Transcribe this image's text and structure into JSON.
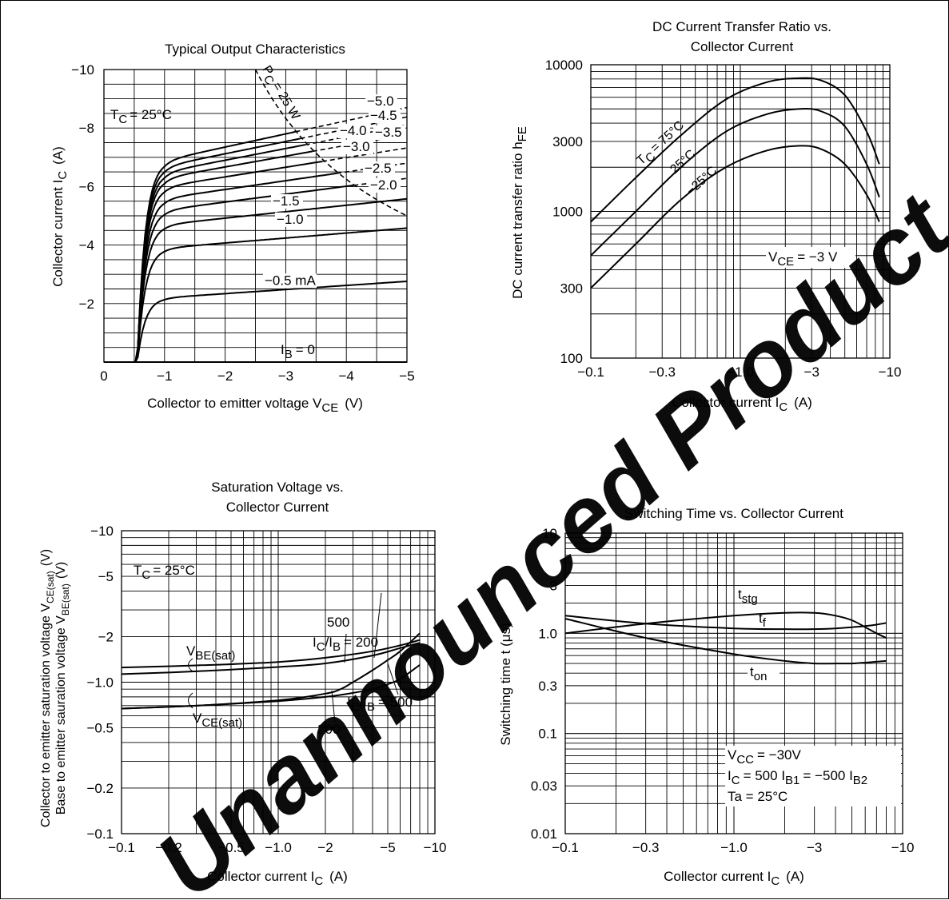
{
  "colors": {
    "ink": "#000000",
    "background": "#ffffff",
    "watermark": "#e60012"
  },
  "watermark": {
    "text": "Discontinued and Unannounced Product",
    "visible_text": "Unannounced Product"
  },
  "chart_data": [
    {
      "id": "output",
      "type": "line",
      "title": "Typical Output Characteristics",
      "xlabel": "Collector to emitter voltage  V",
      "xlabel_sub": "CE",
      "xlabel_unit": "(V)",
      "ylabel": "Collector current  I",
      "ylabel_sub": "C",
      "ylabel_unit": "(A)",
      "xlim": [
        0,
        -5
      ],
      "ylim": [
        0,
        -10
      ],
      "x_ticks": [
        "0",
        "−1",
        "−2",
        "−3",
        "−4",
        "−5"
      ],
      "y_ticks": [
        "",
        "−2",
        "−4",
        "−6",
        "−8",
        "−10"
      ],
      "condition": "T",
      "condition_sub": "C",
      "condition_val": "= 25°C",
      "power_label": "P",
      "power_sub": "C",
      "power_val": "= 25 W",
      "power_hyperbola_W": 25,
      "series": [
        {
          "name": "I_B = 0",
          "label": "0",
          "sat": 0.0,
          "slope": 0.0
        },
        {
          "name": "−0.5 mA",
          "label": "−0.5 mA",
          "sat": 2.2,
          "slope": 0.14
        },
        {
          "name": "−1.0",
          "label": "−1.0",
          "sat": 3.9,
          "slope": 0.17
        },
        {
          "name": "−1.5",
          "label": "−1.5",
          "sat": 4.7,
          "slope": 0.22
        },
        {
          "name": "−2.0",
          "label": "−2.0",
          "sat": 5.2,
          "slope": 0.27
        },
        {
          "name": "−2.5",
          "label": "−2.5",
          "sat": 5.6,
          "slope": 0.3
        },
        {
          "name": "−3.0",
          "label": "−3.0",
          "sat": 6.0,
          "slope": 0.33
        },
        {
          "name": "−3.5",
          "label": "−3.5",
          "sat": 6.3,
          "slope": 0.37
        },
        {
          "name": "−4.0",
          "label": "−4.0",
          "sat": 6.5,
          "slope": 0.4
        },
        {
          "name": "−4.5",
          "label": "−4.5",
          "sat": 6.7,
          "slope": 0.42
        },
        {
          "name": "−5.0",
          "label": "−5.0",
          "sat": 6.9,
          "slope": 0.45
        }
      ],
      "base_label": "I",
      "base_sub": "B",
      "base_val": "= 0"
    },
    {
      "id": "hfe",
      "type": "line",
      "title": "DC Current Transfer Ratio vs.",
      "title2": "Collector Current",
      "xlabel": "Collector current  I",
      "xlabel_sub": "C",
      "xlabel_unit": "(A)",
      "ylabel": "DC current transfer ratio  h",
      "ylabel_sub": "FE",
      "x_scale": "log",
      "y_scale": "log",
      "xlim": [
        -0.1,
        -10
      ],
      "ylim": [
        100,
        10000
      ],
      "x_ticks": [
        {
          "v": 0.1,
          "t": "−0.1"
        },
        {
          "v": 0.3,
          "t": "−0.3"
        },
        {
          "v": 1,
          "t": "−1.0"
        },
        {
          "v": 3,
          "t": "−3"
        },
        {
          "v": 10,
          "t": "−10"
        }
      ],
      "y_ticks": [
        {
          "v": 100,
          "t": "100"
        },
        {
          "v": 300,
          "t": "300"
        },
        {
          "v": 1000,
          "t": "1000"
        },
        {
          "v": 3000,
          "t": "3000"
        },
        {
          "v": 10000,
          "t": "10000"
        }
      ],
      "condition": "V",
      "condition_sub": "CE",
      "condition_val": "= −3 V",
      "temp_prefix": "T",
      "temp_sub": "C",
      "series": [
        {
          "name": "75°C",
          "label": "= 75°C",
          "x": [
            0.1,
            0.2,
            0.4,
            0.8,
            1.5,
            2.5,
            3.5,
            5,
            7,
            8.5
          ],
          "y": [
            850,
            1700,
            3300,
            5800,
            7600,
            8100,
            7800,
            6200,
            3500,
            2100
          ]
        },
        {
          "name": "25°C",
          "label": "25°C",
          "x": [
            0.1,
            0.2,
            0.4,
            0.8,
            1.5,
            2.5,
            3.5,
            5,
            7,
            8.5
          ],
          "y": [
            500,
            1000,
            2000,
            3500,
            4600,
            5000,
            4800,
            3800,
            2100,
            1250
          ]
        },
        {
          "name": "−25°C",
          "label": "−25°C",
          "x": [
            0.1,
            0.2,
            0.4,
            0.8,
            1.5,
            2.5,
            3.5,
            5,
            7,
            8.5
          ],
          "y": [
            300,
            600,
            1200,
            2000,
            2600,
            2800,
            2650,
            2100,
            1300,
            850
          ]
        }
      ]
    },
    {
      "id": "sat",
      "type": "line",
      "title": "Saturation Voltage vs.",
      "title2": "Collector Current",
      "xlabel": "Collector current  I",
      "xlabel_sub": "C",
      "xlabel_unit": "(A)",
      "ylabel1": "Collector to emitter saturation voltage  V",
      "ylabel1_sub": "CE(sat)",
      "ylabel1_unit": "(V)",
      "ylabel2": "Base to emitter sauration voltage  V",
      "ylabel2_sub": "BE(sat)",
      "ylabel2_unit": "(V)",
      "x_scale": "log",
      "y_scale": "log",
      "xlim": [
        -0.1,
        -10
      ],
      "ylim": [
        -0.1,
        -10
      ],
      "x_ticks": [
        {
          "v": 0.1,
          "t": "−0.1"
        },
        {
          "v": 0.2,
          "t": "−0.2"
        },
        {
          "v": 0.5,
          "t": "−0.5"
        },
        {
          "v": 1,
          "t": "−1.0"
        },
        {
          "v": 2,
          "t": "−2"
        },
        {
          "v": 5,
          "t": "−5"
        },
        {
          "v": 10,
          "t": "−10"
        }
      ],
      "y_ticks": [
        {
          "v": 0.1,
          "t": "−0.1"
        },
        {
          "v": 0.2,
          "t": "−0.2"
        },
        {
          "v": 0.5,
          "t": "−0.5"
        },
        {
          "v": 1,
          "t": "−1.0"
        },
        {
          "v": 2,
          "t": "−2"
        },
        {
          "v": 5,
          "t": "−5"
        },
        {
          "v": 10,
          "t": "−10"
        }
      ],
      "condition": "T",
      "condition_sub": "C",
      "condition_val": "= 25°C",
      "vbe_label": "V",
      "vbe_sub": "BE(sat)",
      "vce_label": "V",
      "vce_sub": "CE(sat)",
      "ratio_label": "I",
      "ratio_sub1": "C",
      "ratio_mid": "/I",
      "ratio_sub2": "B",
      "ratio_200": "= 200",
      "ratio_500": "= 500",
      "num_500": "500",
      "num_200": "200",
      "series": [
        {
          "name": "VBE(sat) IC/IB=200",
          "x": [
            0.1,
            0.3,
            1,
            2,
            4,
            6,
            8
          ],
          "y": [
            1.25,
            1.29,
            1.36,
            1.45,
            1.6,
            1.75,
            1.9
          ]
        },
        {
          "name": "VBE(sat) IC/IB=500",
          "x": [
            0.1,
            0.3,
            1,
            2,
            4,
            6,
            8
          ],
          "y": [
            1.13,
            1.18,
            1.26,
            1.33,
            1.5,
            1.68,
            1.82
          ]
        },
        {
          "name": "VCE(sat) IC/IB=200",
          "x": [
            0.1,
            0.3,
            1,
            2,
            3,
            4,
            5,
            6,
            8
          ],
          "y": [
            0.67,
            0.7,
            0.75,
            0.8,
            0.85,
            0.9,
            0.97,
            1.05,
            1.3
          ]
        },
        {
          "name": "VCE(sat) IC/IB=500",
          "x": [
            0.1,
            0.3,
            1,
            2,
            2.5,
            3,
            4,
            5,
            6,
            8
          ],
          "y": [
            0.67,
            0.7,
            0.76,
            0.84,
            0.9,
            1.0,
            1.2,
            1.4,
            1.6,
            2.1
          ]
        }
      ]
    },
    {
      "id": "switch",
      "type": "line",
      "title": "Switching Time vs. Collector Current",
      "xlabel": "Collector current  I",
      "xlabel_sub": "C",
      "xlabel_unit": "(A)",
      "ylabel": "Switching time  t  (μs)",
      "x_scale": "log",
      "y_scale": "log",
      "xlim": [
        -0.1,
        -10
      ],
      "ylim": [
        0.01,
        10
      ],
      "x_ticks": [
        {
          "v": 0.1,
          "t": "−0.1"
        },
        {
          "v": 0.3,
          "t": "−0.3"
        },
        {
          "v": 1,
          "t": "−1.0"
        },
        {
          "v": 3,
          "t": "−3"
        },
        {
          "v": 10,
          "t": "−10"
        }
      ],
      "y_ticks": [
        {
          "v": 0.01,
          "t": "0.01"
        },
        {
          "v": 0.03,
          "t": "0.03"
        },
        {
          "v": 0.1,
          "t": "0.1"
        },
        {
          "v": 0.3,
          "t": "0.3"
        },
        {
          "v": 1,
          "t": "1.0"
        },
        {
          "v": 3,
          "t": "3"
        },
        {
          "v": 10,
          "t": "10"
        }
      ],
      "cond1": "V",
      "cond1_sub": "CC",
      "cond1_val": "= −30V",
      "cond2a": "I",
      "cond2a_sub": "C",
      "cond2b": "= 500 I",
      "cond2b_sub": "B1",
      "cond2c": "= −500 I",
      "cond2c_sub": "B2",
      "cond3": "Ta = 25°C",
      "series": [
        {
          "name": "tstg",
          "label": "t",
          "sub": "stg",
          "x": [
            0.1,
            0.3,
            1,
            2,
            3,
            4,
            5,
            6,
            7,
            8
          ],
          "y": [
            1.0,
            1.25,
            1.5,
            1.6,
            1.6,
            1.5,
            1.35,
            1.15,
            1.0,
            0.9
          ]
        },
        {
          "name": "tf",
          "label": "t",
          "sub": "f",
          "x": [
            0.1,
            0.3,
            1,
            2,
            3,
            4,
            5,
            6,
            7,
            8
          ],
          "y": [
            1.5,
            1.25,
            1.12,
            1.1,
            1.1,
            1.12,
            1.15,
            1.18,
            1.22,
            1.27
          ]
        },
        {
          "name": "ton",
          "label": "t",
          "sub": "on",
          "x": [
            0.1,
            0.3,
            1,
            2,
            3,
            4,
            5,
            6,
            7,
            8
          ],
          "y": [
            1.4,
            0.9,
            0.62,
            0.53,
            0.5,
            0.5,
            0.5,
            0.51,
            0.52,
            0.53
          ]
        }
      ]
    }
  ]
}
